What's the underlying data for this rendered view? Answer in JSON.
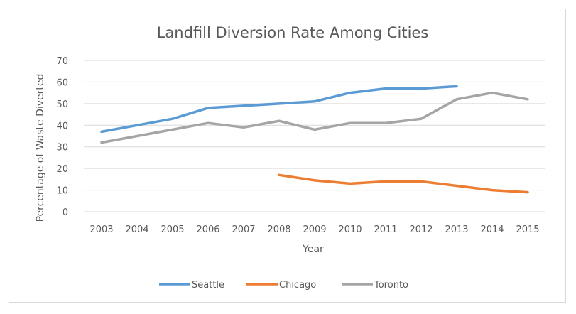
{
  "chart_data": {
    "type": "line",
    "title": "Landfill Diversion Rate Among Cities",
    "xlabel": "Year",
    "ylabel": "Percentage of Waste Diverted",
    "x": [
      "2003",
      "2004",
      "2005",
      "2006",
      "2007",
      "2008",
      "2009",
      "2010",
      "2011",
      "2012",
      "2013",
      "2014",
      "2015"
    ],
    "ylim": [
      0,
      70
    ],
    "yticks": [
      0,
      10,
      20,
      30,
      40,
      50,
      60,
      70
    ],
    "grid": true,
    "legend_position": "bottom",
    "series": [
      {
        "name": "Seattle",
        "color": "#5b9bd5",
        "values": [
          37,
          40,
          43,
          48,
          49,
          50,
          51,
          55,
          57,
          57,
          58,
          null,
          null
        ]
      },
      {
        "name": "Chicago",
        "color": "#ed7d31",
        "values": [
          null,
          null,
          null,
          null,
          null,
          17,
          14.5,
          13,
          14,
          14,
          12,
          10,
          9
        ]
      },
      {
        "name": "Toronto",
        "color": "#a5a5a5",
        "values": [
          32,
          35,
          38,
          41,
          39,
          42,
          38,
          41,
          41,
          43,
          52,
          55,
          52
        ]
      }
    ]
  }
}
